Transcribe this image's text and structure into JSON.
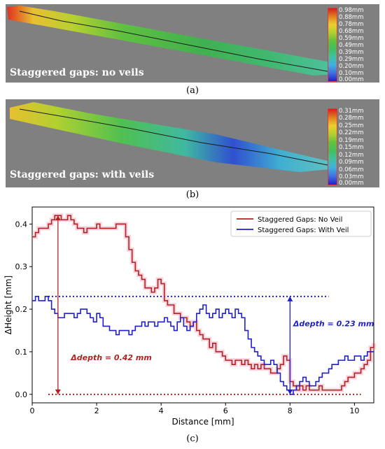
{
  "panel_a": {
    "title": "Staggered gaps: no veils",
    "caption": "(a)",
    "colorbar": [
      "0.98mm",
      "0.88mm",
      "0.78mm",
      "0.68mm",
      "0.59mm",
      "0.49mm",
      "0.39mm",
      "0.29mm",
      "0.20mm",
      "0.10mm",
      "0.00mm"
    ]
  },
  "panel_b": {
    "title": "Staggered gaps: with veils",
    "caption": "(b)",
    "colorbar": [
      "0.31mm",
      "0.28mm",
      "0.25mm",
      "0.22mm",
      "0.19mm",
      "0.15mm",
      "0.12mm",
      "0.09mm",
      "0.06mm",
      "0.03mm",
      "0.00mm"
    ]
  },
  "panel_c": {
    "caption": "(c)"
  },
  "colors": {
    "no_veil": "#b22222",
    "with_veil": "#1f1fcc",
    "background": "#808080"
  },
  "chart_data": {
    "type": "line",
    "xlabel": "Distance [mm]",
    "ylabel": "ΔHeight [mm]",
    "xlim": [
      0,
      10.6
    ],
    "ylim": [
      -0.02,
      0.44
    ],
    "xticks": [
      0,
      2,
      4,
      6,
      8,
      10
    ],
    "yticks": [
      0.0,
      0.1,
      0.2,
      0.3,
      0.4
    ],
    "legend_position": "top-right",
    "series": [
      {
        "name": "Staggered Gaps: No Veil",
        "color": "#b22222",
        "x": [
          0,
          0.1,
          0.2,
          0.3,
          0.4,
          0.5,
          0.6,
          0.7,
          0.8,
          0.9,
          1.0,
          1.1,
          1.2,
          1.3,
          1.4,
          1.5,
          1.6,
          1.7,
          1.8,
          1.9,
          2.0,
          2.1,
          2.2,
          2.3,
          2.4,
          2.5,
          2.6,
          2.7,
          2.8,
          2.9,
          3.0,
          3.1,
          3.2,
          3.3,
          3.4,
          3.5,
          3.6,
          3.7,
          3.8,
          3.9,
          4.0,
          4.1,
          4.2,
          4.3,
          4.4,
          4.5,
          4.6,
          4.7,
          4.8,
          4.9,
          5.0,
          5.1,
          5.2,
          5.3,
          5.4,
          5.5,
          5.6,
          5.7,
          5.8,
          5.9,
          6.0,
          6.1,
          6.2,
          6.3,
          6.4,
          6.5,
          6.6,
          6.7,
          6.8,
          6.9,
          7.0,
          7.1,
          7.2,
          7.3,
          7.4,
          7.5,
          7.6,
          7.7,
          7.8,
          7.9,
          8.0,
          8.1,
          8.2,
          8.3,
          8.4,
          8.5,
          8.6,
          8.7,
          8.8,
          8.9,
          9.0,
          9.1,
          9.2,
          9.3,
          9.4,
          9.5,
          9.6,
          9.7,
          9.8,
          9.9,
          10.0,
          10.1,
          10.2,
          10.3,
          10.4,
          10.5,
          10.6
        ],
        "y": [
          0.37,
          0.38,
          0.39,
          0.39,
          0.39,
          0.4,
          0.41,
          0.42,
          0.42,
          0.41,
          0.41,
          0.42,
          0.41,
          0.4,
          0.39,
          0.39,
          0.38,
          0.39,
          0.39,
          0.39,
          0.4,
          0.39,
          0.39,
          0.39,
          0.39,
          0.39,
          0.4,
          0.4,
          0.4,
          0.37,
          0.34,
          0.31,
          0.29,
          0.28,
          0.27,
          0.25,
          0.25,
          0.24,
          0.25,
          0.27,
          0.26,
          0.22,
          0.21,
          0.21,
          0.19,
          0.19,
          0.18,
          0.18,
          0.17,
          0.16,
          0.17,
          0.15,
          0.14,
          0.13,
          0.13,
          0.11,
          0.12,
          0.1,
          0.1,
          0.09,
          0.08,
          0.08,
          0.07,
          0.08,
          0.08,
          0.07,
          0.08,
          0.07,
          0.06,
          0.07,
          0.06,
          0.07,
          0.06,
          0.06,
          0.05,
          0.05,
          0.06,
          0.07,
          0.09,
          0.08,
          0.03,
          0.02,
          0.01,
          0.02,
          0.01,
          0.02,
          0.01,
          0.01,
          0.01,
          0.02,
          0.01,
          0.01,
          0.01,
          0.01,
          0.01,
          0.01,
          0.02,
          0.03,
          0.04,
          0.04,
          0.05,
          0.05,
          0.06,
          0.07,
          0.08,
          0.11,
          0.12
        ]
      },
      {
        "name": "Staggered Gaps: With Veil",
        "color": "#1f1fcc",
        "x": [
          0,
          0.1,
          0.2,
          0.3,
          0.4,
          0.5,
          0.6,
          0.7,
          0.8,
          0.9,
          1.0,
          1.1,
          1.2,
          1.3,
          1.4,
          1.5,
          1.6,
          1.7,
          1.8,
          1.9,
          2.0,
          2.1,
          2.2,
          2.3,
          2.4,
          2.5,
          2.6,
          2.7,
          2.8,
          2.9,
          3.0,
          3.1,
          3.2,
          3.3,
          3.4,
          3.5,
          3.6,
          3.7,
          3.8,
          3.9,
          4.0,
          4.1,
          4.2,
          4.3,
          4.4,
          4.5,
          4.6,
          4.7,
          4.8,
          4.9,
          5.0,
          5.1,
          5.2,
          5.3,
          5.4,
          5.5,
          5.6,
          5.7,
          5.8,
          5.9,
          6.0,
          6.1,
          6.2,
          6.3,
          6.4,
          6.5,
          6.6,
          6.7,
          6.8,
          6.9,
          7.0,
          7.1,
          7.2,
          7.3,
          7.4,
          7.5,
          7.6,
          7.7,
          7.8,
          7.9,
          8.0,
          8.1,
          8.2,
          8.3,
          8.4,
          8.5,
          8.6,
          8.7,
          8.8,
          8.9,
          9.0,
          9.1,
          9.2,
          9.3,
          9.4,
          9.5,
          9.6,
          9.7,
          9.8,
          9.9,
          10.0,
          10.1,
          10.2,
          10.3,
          10.4,
          10.5,
          10.6
        ],
        "y": [
          0.22,
          0.23,
          0.22,
          0.22,
          0.23,
          0.22,
          0.2,
          0.19,
          0.18,
          0.18,
          0.19,
          0.19,
          0.19,
          0.18,
          0.19,
          0.2,
          0.2,
          0.19,
          0.18,
          0.17,
          0.19,
          0.18,
          0.16,
          0.16,
          0.15,
          0.15,
          0.14,
          0.15,
          0.15,
          0.15,
          0.14,
          0.15,
          0.16,
          0.16,
          0.17,
          0.16,
          0.17,
          0.17,
          0.16,
          0.17,
          0.17,
          0.18,
          0.17,
          0.16,
          0.15,
          0.17,
          0.18,
          0.16,
          0.15,
          0.16,
          0.17,
          0.19,
          0.2,
          0.21,
          0.19,
          0.18,
          0.19,
          0.2,
          0.18,
          0.19,
          0.2,
          0.19,
          0.18,
          0.2,
          0.19,
          0.18,
          0.15,
          0.13,
          0.11,
          0.1,
          0.09,
          0.08,
          0.07,
          0.07,
          0.08,
          0.07,
          0.05,
          0.03,
          0.02,
          0.01,
          0.0,
          0.01,
          0.02,
          0.03,
          0.04,
          0.03,
          0.02,
          0.02,
          0.03,
          0.04,
          0.05,
          0.05,
          0.06,
          0.07,
          0.07,
          0.08,
          0.08,
          0.09,
          0.08,
          0.08,
          0.09,
          0.09,
          0.08,
          0.09,
          0.1,
          0.1,
          0.1
        ]
      }
    ],
    "annotations": [
      {
        "text": "Δdepth = 0.42 mm",
        "color": "#b22222",
        "x": 1.2,
        "y": 0.08,
        "arrow_x": 0.8,
        "arrow_from": 0.0,
        "arrow_to": 0.42
      },
      {
        "text": "Δdepth = 0.23 mm",
        "color": "#1f1fcc",
        "x": 8.1,
        "y": 0.16,
        "arrow_x": 8.0,
        "arrow_from": 0.0,
        "arrow_to": 0.23
      }
    ],
    "reference_lines": [
      {
        "y": 0.0,
        "x_from": 0.5,
        "x_to": 10.2,
        "color": "#b22222",
        "style": "dotted"
      },
      {
        "y": 0.23,
        "x_from": 0.5,
        "x_to": 9.2,
        "color": "#1f1fcc",
        "style": "dotted"
      }
    ]
  }
}
